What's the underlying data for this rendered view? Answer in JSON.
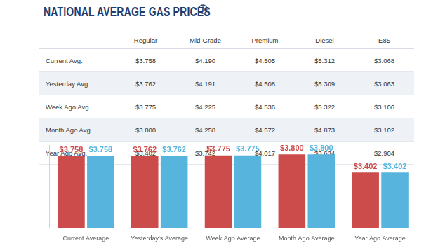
{
  "header": {
    "title": "NATIONAL AVERAGE GAS PRICES"
  },
  "table": {
    "columns": [
      "",
      "Regular",
      "Mid-Grade",
      "Premium",
      "Diesel",
      "E85"
    ],
    "rows": [
      [
        "Current Avg.",
        "$3.758",
        "$4.190",
        "$4.505",
        "$5.312",
        "$3.068"
      ],
      [
        "Yesterday Avg.",
        "$3.762",
        "$4.191",
        "$4.508",
        "$5.309",
        "$3.063"
      ],
      [
        "Week Ago Avg.",
        "$3.775",
        "$4.225",
        "$4.536",
        "$5.322",
        "$3.106"
      ],
      [
        "Month Ago Avg.",
        "$3.800",
        "$4.258",
        "$4.572",
        "$4.873",
        "$3.102"
      ],
      [
        "Year Ago Avg.",
        "$3.402",
        "$3.742",
        "$4.017",
        "$3.634",
        "$2.904"
      ]
    ]
  },
  "chart_data": {
    "type": "bar",
    "categories": [
      "Current Average",
      "Yesterday's Average",
      "Week Ago Average",
      "Month Ago Average",
      "Year Ago Average"
    ],
    "series": [
      {
        "color": "#cc4b4b",
        "values": [
          3.758,
          3.762,
          3.775,
          3.8,
          3.402
        ],
        "value_labels": [
          "$3.758",
          "$3.762",
          "$3.775",
          "$3.800",
          "$3.402"
        ]
      },
      {
        "color": "#56b4dd",
        "values": [
          3.758,
          3.762,
          3.775,
          3.8,
          3.402
        ],
        "value_labels": [
          "$3.758",
          "$3.762",
          "$3.775",
          "$3.800",
          "$3.402"
        ]
      }
    ],
    "ylim": [
      2.2,
      4.0
    ],
    "grid": false,
    "data_labels": true,
    "tick_labels": "x"
  }
}
